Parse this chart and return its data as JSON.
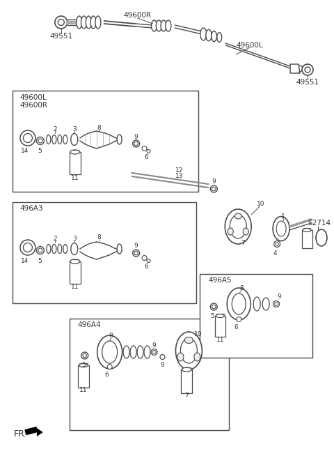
{
  "bg_color": "#ffffff",
  "lc": "#4a4a4a",
  "tc": "#333333",
  "figsize": [
    4.8,
    6.44
  ],
  "dpi": 100,
  "labels": {
    "fr": "FR.",
    "top_left_part": "49551",
    "top_mid_part": "49600R",
    "top_right_part": "49600L",
    "top_right_end": "49551",
    "box1_name": "49600L",
    "box1_name2": "49600R",
    "box2_name": "496A3",
    "box3_name": "496A4",
    "box4_name": "496A5",
    "box5_name": "52714"
  },
  "part_nums": [
    "1",
    "2",
    "3",
    "4",
    "5",
    "6",
    "7",
    "8",
    "9",
    "10",
    "11",
    "12",
    "13",
    "14"
  ]
}
